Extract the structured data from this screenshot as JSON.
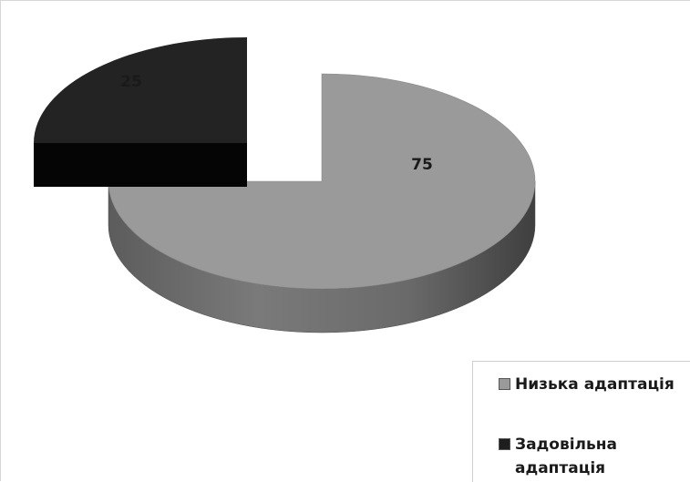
{
  "chart_data": {
    "type": "pie",
    "title": "",
    "categories": [
      "Низька адаптація",
      "Задовільна адаптація"
    ],
    "values": [
      75,
      25
    ],
    "data_labels": [
      "75",
      "25"
    ],
    "colors": [
      "#9a9a9a",
      "#232323"
    ],
    "exploded": [
      false,
      true
    ],
    "style": "3d",
    "legend_position": "bottom-right"
  },
  "legend": {
    "items": [
      {
        "label": "Низька адаптація",
        "color": "#9a9a9a"
      },
      {
        "label": "Задовільна адаптація",
        "color": "#1e1e1e"
      }
    ]
  }
}
